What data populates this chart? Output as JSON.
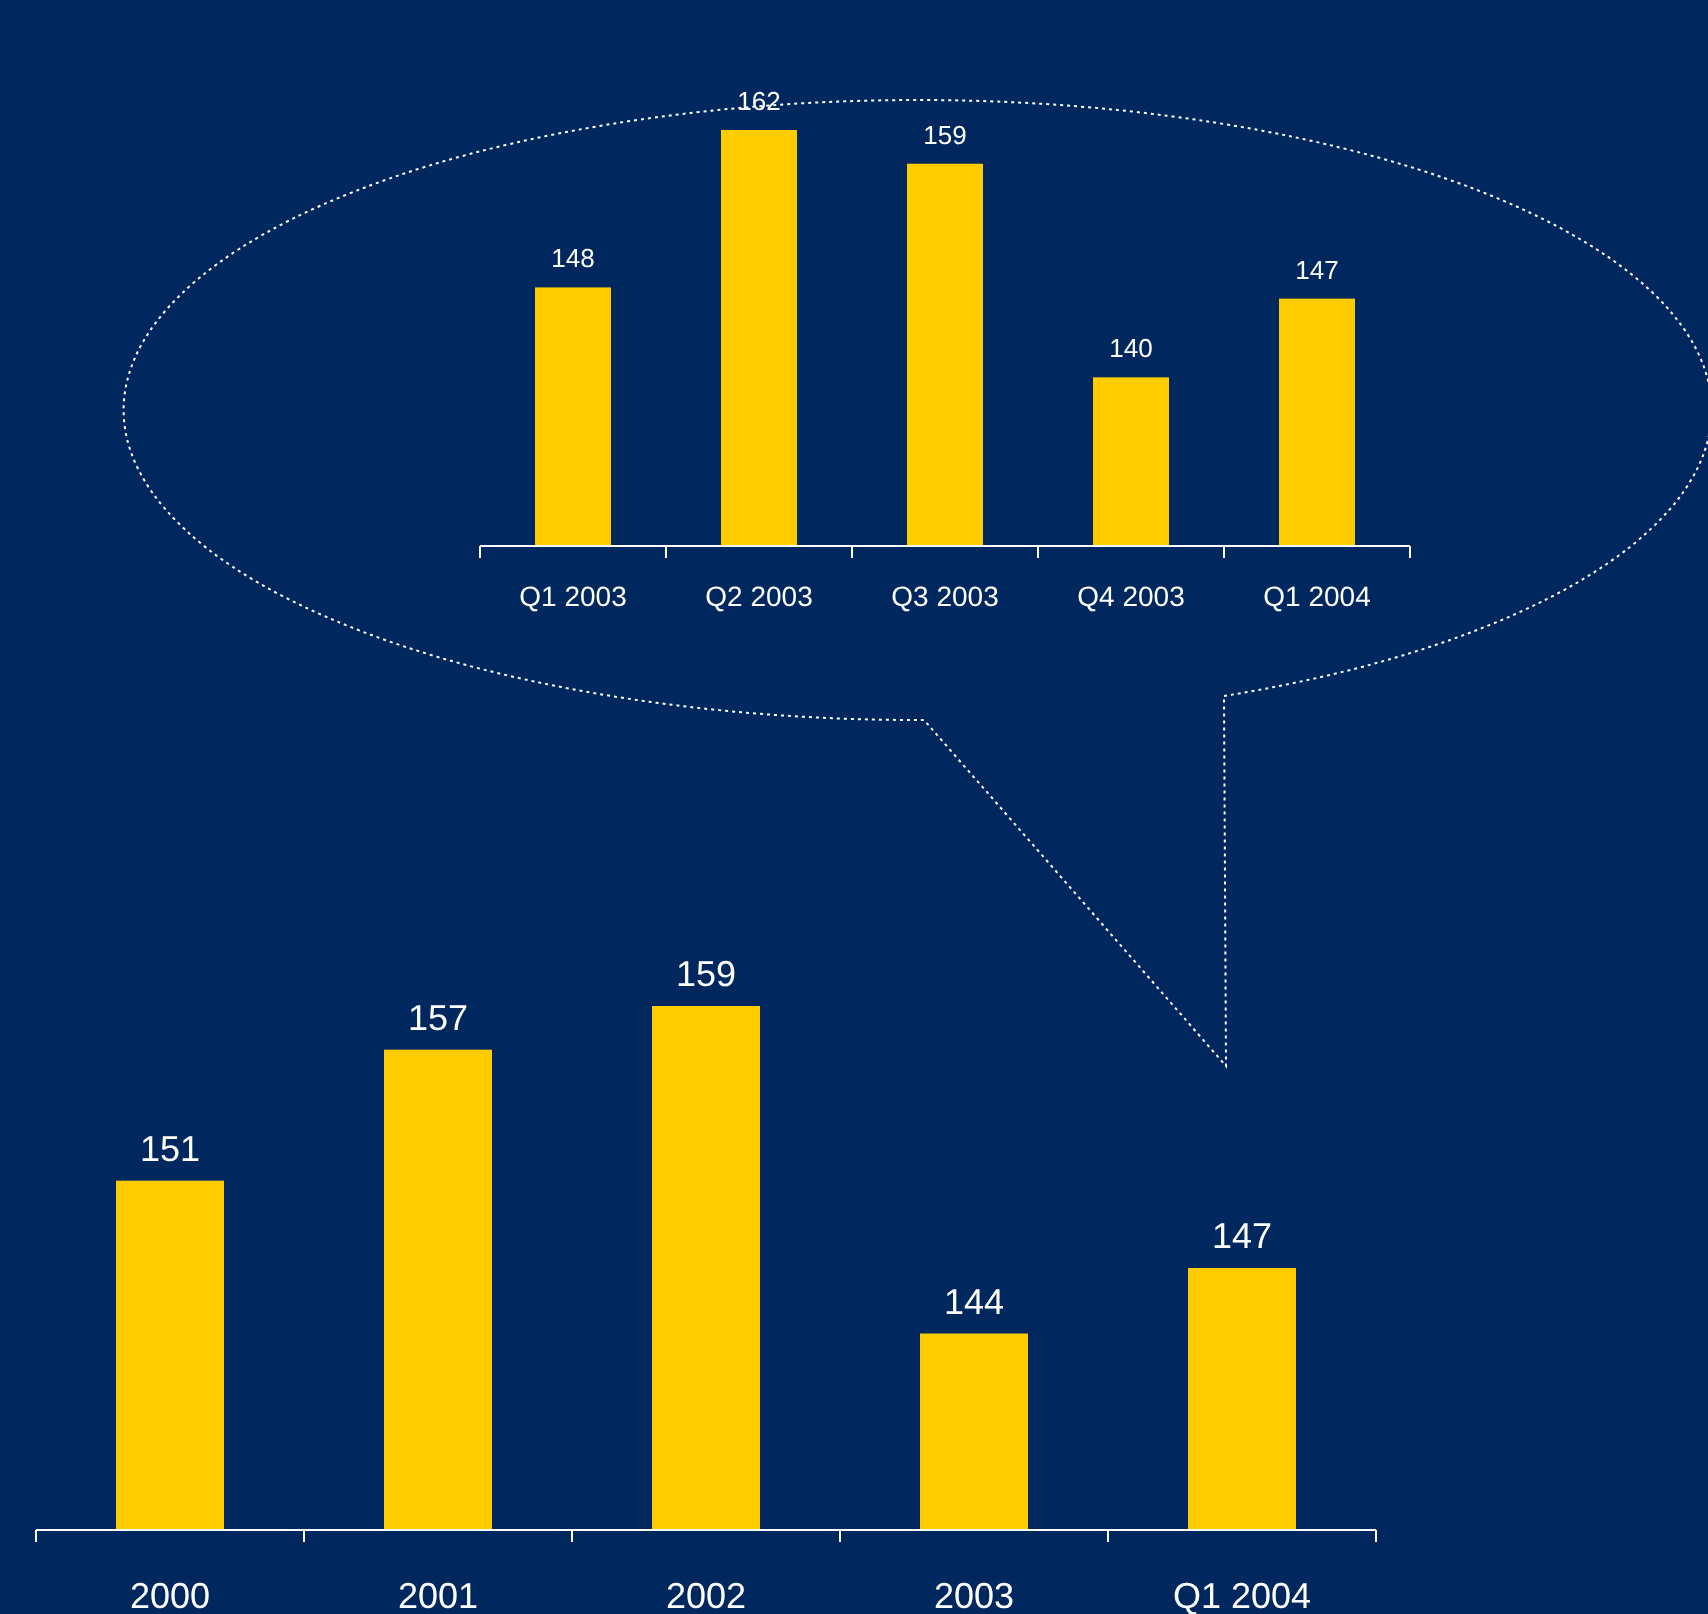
{
  "chart_data": [
    {
      "type": "bar",
      "categories": [
        "Q1 2003",
        "Q2 2003",
        "Q3 2003",
        "Q4 2003",
        "Q1 2004"
      ],
      "values": [
        148,
        162,
        159,
        140,
        147
      ],
      "color": "#ffcc00",
      "ylim": [
        125,
        162
      ],
      "data_labels": true
    },
    {
      "type": "bar",
      "categories": [
        "2000",
        "2001",
        "2002",
        "2003",
        "Q1 2004"
      ],
      "values": [
        151,
        157,
        159,
        144,
        147
      ],
      "color": "#ffcc00",
      "ylim": [
        135,
        159
      ],
      "data_labels": true
    }
  ]
}
